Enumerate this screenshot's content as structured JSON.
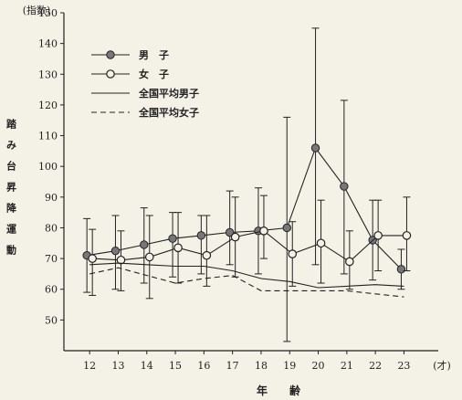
{
  "chart_data": {
    "type": "line",
    "x": [
      12,
      13,
      14,
      15,
      16,
      17,
      18,
      19,
      20,
      21,
      22,
      23
    ],
    "x_tick_labels": [
      "12",
      "13",
      "14",
      "15",
      "16",
      "17",
      "18",
      "19",
      "20",
      "21",
      "22",
      "23"
    ],
    "x_unit": "(才)",
    "xlabel": "年　　齢",
    "ylabel": "踏み台昇降運動",
    "y_unit": "(指数)",
    "ylim": [
      40,
      150
    ],
    "y_ticks": [
      50,
      60,
      70,
      80,
      90,
      100,
      110,
      120,
      130,
      140,
      150
    ],
    "legend": {
      "position": "top-left",
      "entries": [
        "男　子",
        "女　子",
        "全国平均男子",
        "全国平均女子"
      ]
    },
    "series": [
      {
        "name": "男　子",
        "style": "filled-marker",
        "values": [
          71,
          72.5,
          74.5,
          76.5,
          77.5,
          78.5,
          79,
          80,
          106,
          93.5,
          76,
          66.5
        ],
        "err_upper": [
          83,
          84,
          86.5,
          85,
          84,
          92,
          93,
          116,
          145,
          121.5,
          89,
          73
        ],
        "err_lower": [
          59,
          60,
          62,
          64,
          65,
          68,
          65,
          43,
          68,
          65,
          63,
          60
        ]
      },
      {
        "name": "女　子",
        "style": "open-marker",
        "values": [
          70,
          69.5,
          70.5,
          73.5,
          71,
          77,
          79,
          71.5,
          75,
          69,
          77.5,
          77.5
        ],
        "err_upper": [
          79.5,
          79,
          84,
          85,
          84,
          90,
          90.5,
          82,
          89,
          79,
          89,
          90
        ],
        "err_lower": [
          58,
          59.5,
          57,
          62,
          61,
          64,
          70,
          61,
          62,
          60,
          66,
          66
        ]
      },
      {
        "name": "全国平均男子",
        "style": "solid",
        "values": [
          68,
          68.5,
          68,
          67.5,
          67.5,
          66,
          63.5,
          62.5,
          60.5,
          61,
          61.5,
          61
        ]
      },
      {
        "name": "全国平均女子",
        "style": "dashed",
        "values": [
          65,
          67,
          64.5,
          62,
          63.5,
          64.5,
          59.5,
          59.5,
          59.5,
          59.5,
          58.5,
          57.5
        ]
      }
    ],
    "colors": {
      "ink": "#222222",
      "filled_marker": "#777777",
      "background": "#f4f1e6"
    }
  }
}
